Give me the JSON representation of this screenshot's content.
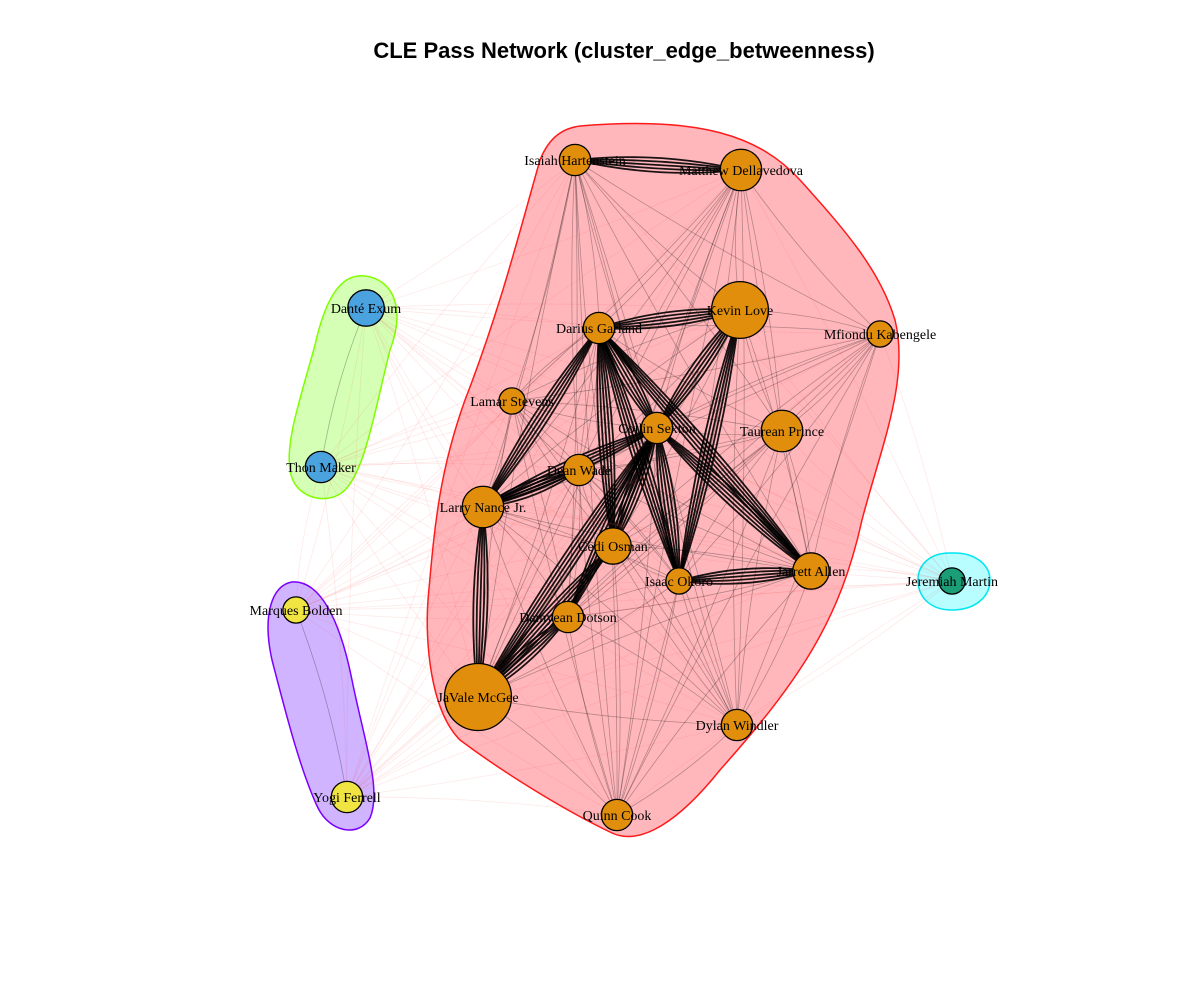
{
  "title": "CLE Pass Network (cluster_edge_betweenness)",
  "colors": {
    "background": "#ffffff",
    "main_cluster_fill": "#ffb3b8",
    "main_cluster_border": "#ff1a1a",
    "green_cluster_fill": "#d4ffb4",
    "green_cluster_border": "#80ff00",
    "purple_cluster_fill": "#d0b4ff",
    "purple_cluster_border": "#7a00ff",
    "cyan_cluster_fill": "#b8fdff",
    "cyan_cluster_border": "#00e5f0",
    "orange_node": "#e08e0b",
    "blue_node": "#4aa3df",
    "yellow_node": "#f0e442",
    "green_node": "#1b9e77",
    "intra_edge": "#000000",
    "inter_edge": "#ff4d4d"
  },
  "clusters": [
    {
      "id": "c1",
      "color": "main",
      "members": [
        "Isaiah Hartenstein",
        "Matthew Dellavedova",
        "Kevin Love",
        "Darius Garland",
        "Mfiondu Kabengele",
        "Lamar Stevens",
        "Collin Sexton",
        "Taurean Prince",
        "Dean Wade",
        "Larry Nance Jr.",
        "Cedi Osman",
        "Isaac Okoro",
        "Jarrett Allen",
        "Damyean Dotson",
        "JaVale McGee",
        "Dylan Windler",
        "Quinn Cook"
      ]
    },
    {
      "id": "c2",
      "color": "green",
      "members": [
        "Danté Exum",
        "Thon Maker"
      ]
    },
    {
      "id": "c3",
      "color": "purple",
      "members": [
        "Marques Bolden",
        "Yogi Ferrell"
      ]
    },
    {
      "id": "c4",
      "color": "cyan",
      "members": [
        "Jeremiah Martin"
      ]
    }
  ],
  "nodes": [
    {
      "name": "Isaiah Hartenstein",
      "cluster": "c1",
      "size": 3
    },
    {
      "name": "Matthew Dellavedova",
      "cluster": "c1",
      "size": 5
    },
    {
      "name": "Kevin Love",
      "cluster": "c1",
      "size": 8
    },
    {
      "name": "Darius Garland",
      "cluster": "c1",
      "size": 3
    },
    {
      "name": "Mfiondu Kabengele",
      "cluster": "c1",
      "size": 2
    },
    {
      "name": "Lamar Stevens",
      "cluster": "c1",
      "size": 2
    },
    {
      "name": "Collin Sexton",
      "cluster": "c1",
      "size": 3
    },
    {
      "name": "Taurean Prince",
      "cluster": "c1",
      "size": 5
    },
    {
      "name": "Dean Wade",
      "cluster": "c1",
      "size": 3
    },
    {
      "name": "Larry Nance Jr.",
      "cluster": "c1",
      "size": 5
    },
    {
      "name": "Cedi Osman",
      "cluster": "c1",
      "size": 4
    },
    {
      "name": "Isaac Okoro",
      "cluster": "c1",
      "size": 2
    },
    {
      "name": "Jarrett Allen",
      "cluster": "c1",
      "size": 4
    },
    {
      "name": "Damyean Dotson",
      "cluster": "c1",
      "size": 3
    },
    {
      "name": "JaVale McGee",
      "cluster": "c1",
      "size": 10
    },
    {
      "name": "Dylan Windler",
      "cluster": "c1",
      "size": 3
    },
    {
      "name": "Quinn Cook",
      "cluster": "c1",
      "size": 3
    },
    {
      "name": "Danté Exum",
      "cluster": "c2",
      "size": 4
    },
    {
      "name": "Thon Maker",
      "cluster": "c2",
      "size": 3
    },
    {
      "name": "Marques Bolden",
      "cluster": "c3",
      "size": 2
    },
    {
      "name": "Yogi Ferrell",
      "cluster": "c3",
      "size": 3
    },
    {
      "name": "Jeremiah Martin",
      "cluster": "c4",
      "size": 2
    }
  ],
  "heavy_edges": [
    [
      "Darius Garland",
      "Collin Sexton"
    ],
    [
      "Darius Garland",
      "Larry Nance Jr."
    ],
    [
      "Darius Garland",
      "Jarrett Allen"
    ],
    [
      "Darius Garland",
      "Isaac Okoro"
    ],
    [
      "Darius Garland",
      "Cedi Osman"
    ],
    [
      "Darius Garland",
      "Kevin Love"
    ],
    [
      "Collin Sexton",
      "Larry Nance Jr."
    ],
    [
      "Collin Sexton",
      "Jarrett Allen"
    ],
    [
      "Collin Sexton",
      "Isaac Okoro"
    ],
    [
      "Collin Sexton",
      "Cedi Osman"
    ],
    [
      "Collin Sexton",
      "Kevin Love"
    ],
    [
      "Collin Sexton",
      "JaVale McGee"
    ],
    [
      "Collin Sexton",
      "Damyean Dotson"
    ],
    [
      "Larry Nance Jr.",
      "JaVale McGee"
    ],
    [
      "Larry Nance Jr.",
      "Dean Wade"
    ],
    [
      "Kevin Love",
      "Isaac Okoro"
    ],
    [
      "Isaac Okoro",
      "Jarrett Allen"
    ],
    [
      "Isaiah Hartenstein",
      "Matthew Dellavedova"
    ],
    [
      "Cedi Osman",
      "JaVale McGee"
    ],
    [
      "Damyean Dotson",
      "JaVale McGee"
    ]
  ]
}
